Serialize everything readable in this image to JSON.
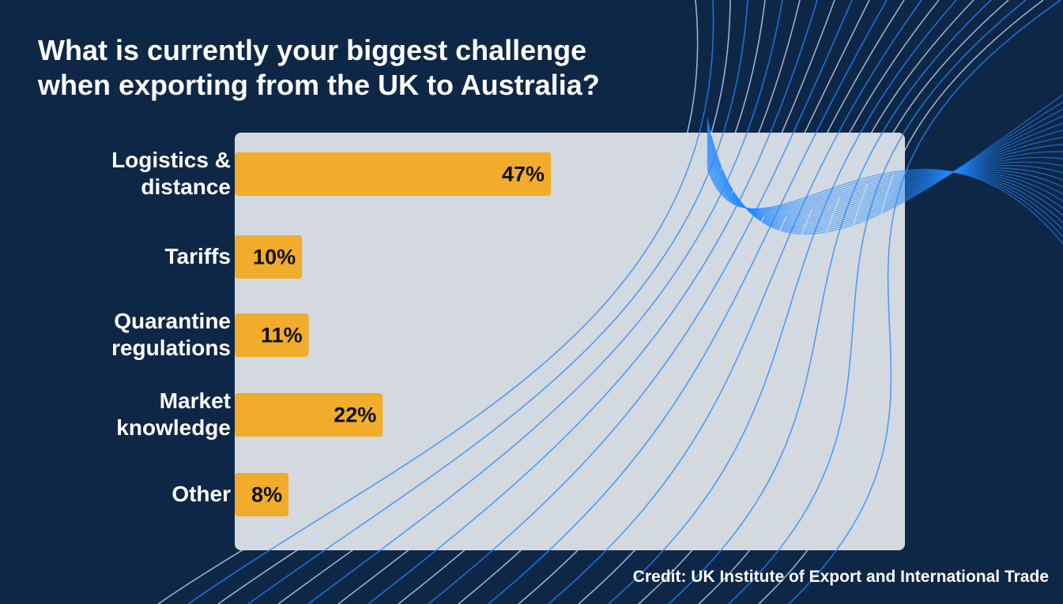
{
  "chart_data": {
    "type": "bar",
    "title": "What is currently your biggest challenge\nwhen exporting from the UK to Australia?",
    "categories": [
      "Logistics &\ndistance",
      "Tariffs",
      "Quarantine\nregulations",
      "Market\nknowledge",
      "Other"
    ],
    "values": [
      47,
      10,
      11,
      22,
      8
    ],
    "value_labels": [
      "47%",
      "10%",
      "11%",
      "22%",
      "8%"
    ],
    "color": "#f0ac2a",
    "credit": "Credit: UK Institute of Export and International Trade"
  }
}
